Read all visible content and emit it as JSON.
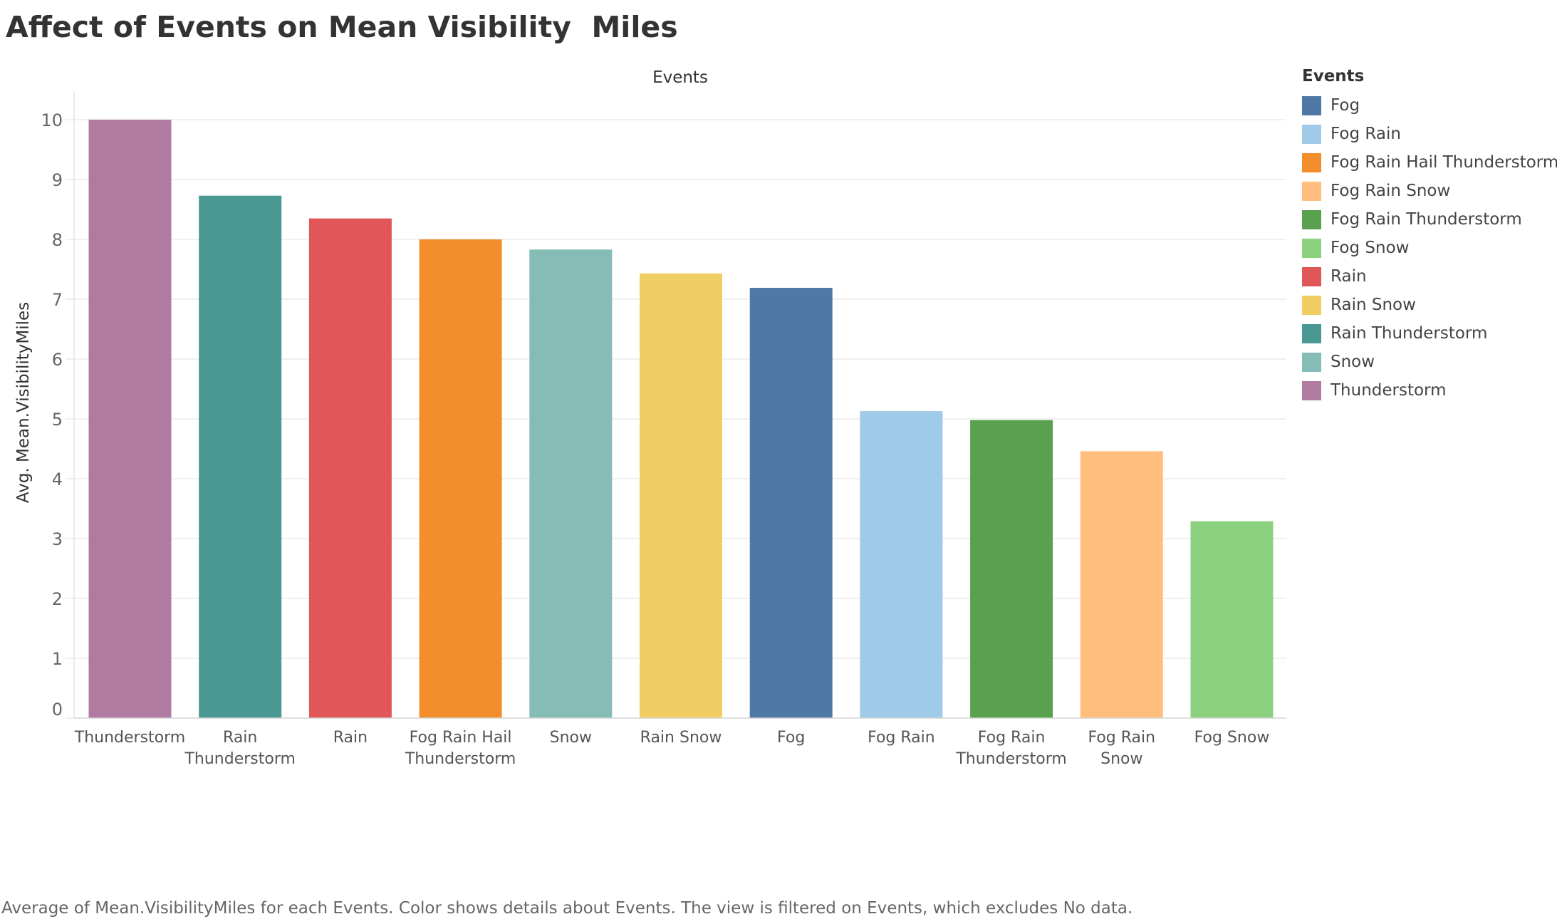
{
  "title": "Affect of Events on Mean Visibility  Miles",
  "caption": "Average of Mean.VisibilityMiles for each Events.  Color shows details about Events. The view is filtered on Events, which excludes No data.",
  "legend": {
    "title": "Events",
    "items": [
      {
        "label": "Fog",
        "color": "#4e79a7"
      },
      {
        "label": "Fog Rain",
        "color": "#a0cbe8"
      },
      {
        "label": "Fog Rain Hail Thunderstorm",
        "color": "#f28e2b"
      },
      {
        "label": "Fog Rain Snow",
        "color": "#ffbe7d"
      },
      {
        "label": "Fog Rain Thunderstorm",
        "color": "#59a14f"
      },
      {
        "label": "Fog Snow",
        "color": "#8cd17d"
      },
      {
        "label": "Rain",
        "color": "#e15759"
      },
      {
        "label": "Rain Snow",
        "color": "#f1ce63"
      },
      {
        "label": "Rain Thunderstorm",
        "color": "#499894"
      },
      {
        "label": "Snow",
        "color": "#86bcb6"
      },
      {
        "label": "Thunderstorm",
        "color": "#b07aa1"
      }
    ]
  },
  "chart_data": {
    "type": "bar",
    "title": "Affect of Events on Mean Visibility  Miles",
    "xlabel": "Events",
    "ylabel": "Avg. Mean.VisibilityMiles",
    "ylim": [
      0,
      10
    ],
    "yticks": [
      0,
      1,
      2,
      3,
      4,
      5,
      6,
      7,
      8,
      9,
      10
    ],
    "grid": "horizontal",
    "legend_position": "right",
    "categories": [
      [
        "Thunderstorm"
      ],
      [
        "Rain",
        "Thunderstorm"
      ],
      [
        "Rain"
      ],
      [
        "Fog Rain Hail",
        "Thunderstorm"
      ],
      [
        "Snow"
      ],
      [
        "Rain Snow"
      ],
      [
        "Fog"
      ],
      [
        "Fog Rain"
      ],
      [
        "Fog Rain",
        "Thunderstorm"
      ],
      [
        "Fog Rain",
        "Snow"
      ],
      [
        "Fog Snow"
      ]
    ],
    "values": [
      10.0,
      8.73,
      8.35,
      8.0,
      7.83,
      7.43,
      7.19,
      5.13,
      4.98,
      4.46,
      3.29
    ],
    "colors": [
      "#b07aa1",
      "#499894",
      "#e15759",
      "#f28e2b",
      "#86bcb6",
      "#f1ce63",
      "#4e79a7",
      "#a0cbe8",
      "#59a14f",
      "#ffbe7d",
      "#8cd17d"
    ]
  }
}
